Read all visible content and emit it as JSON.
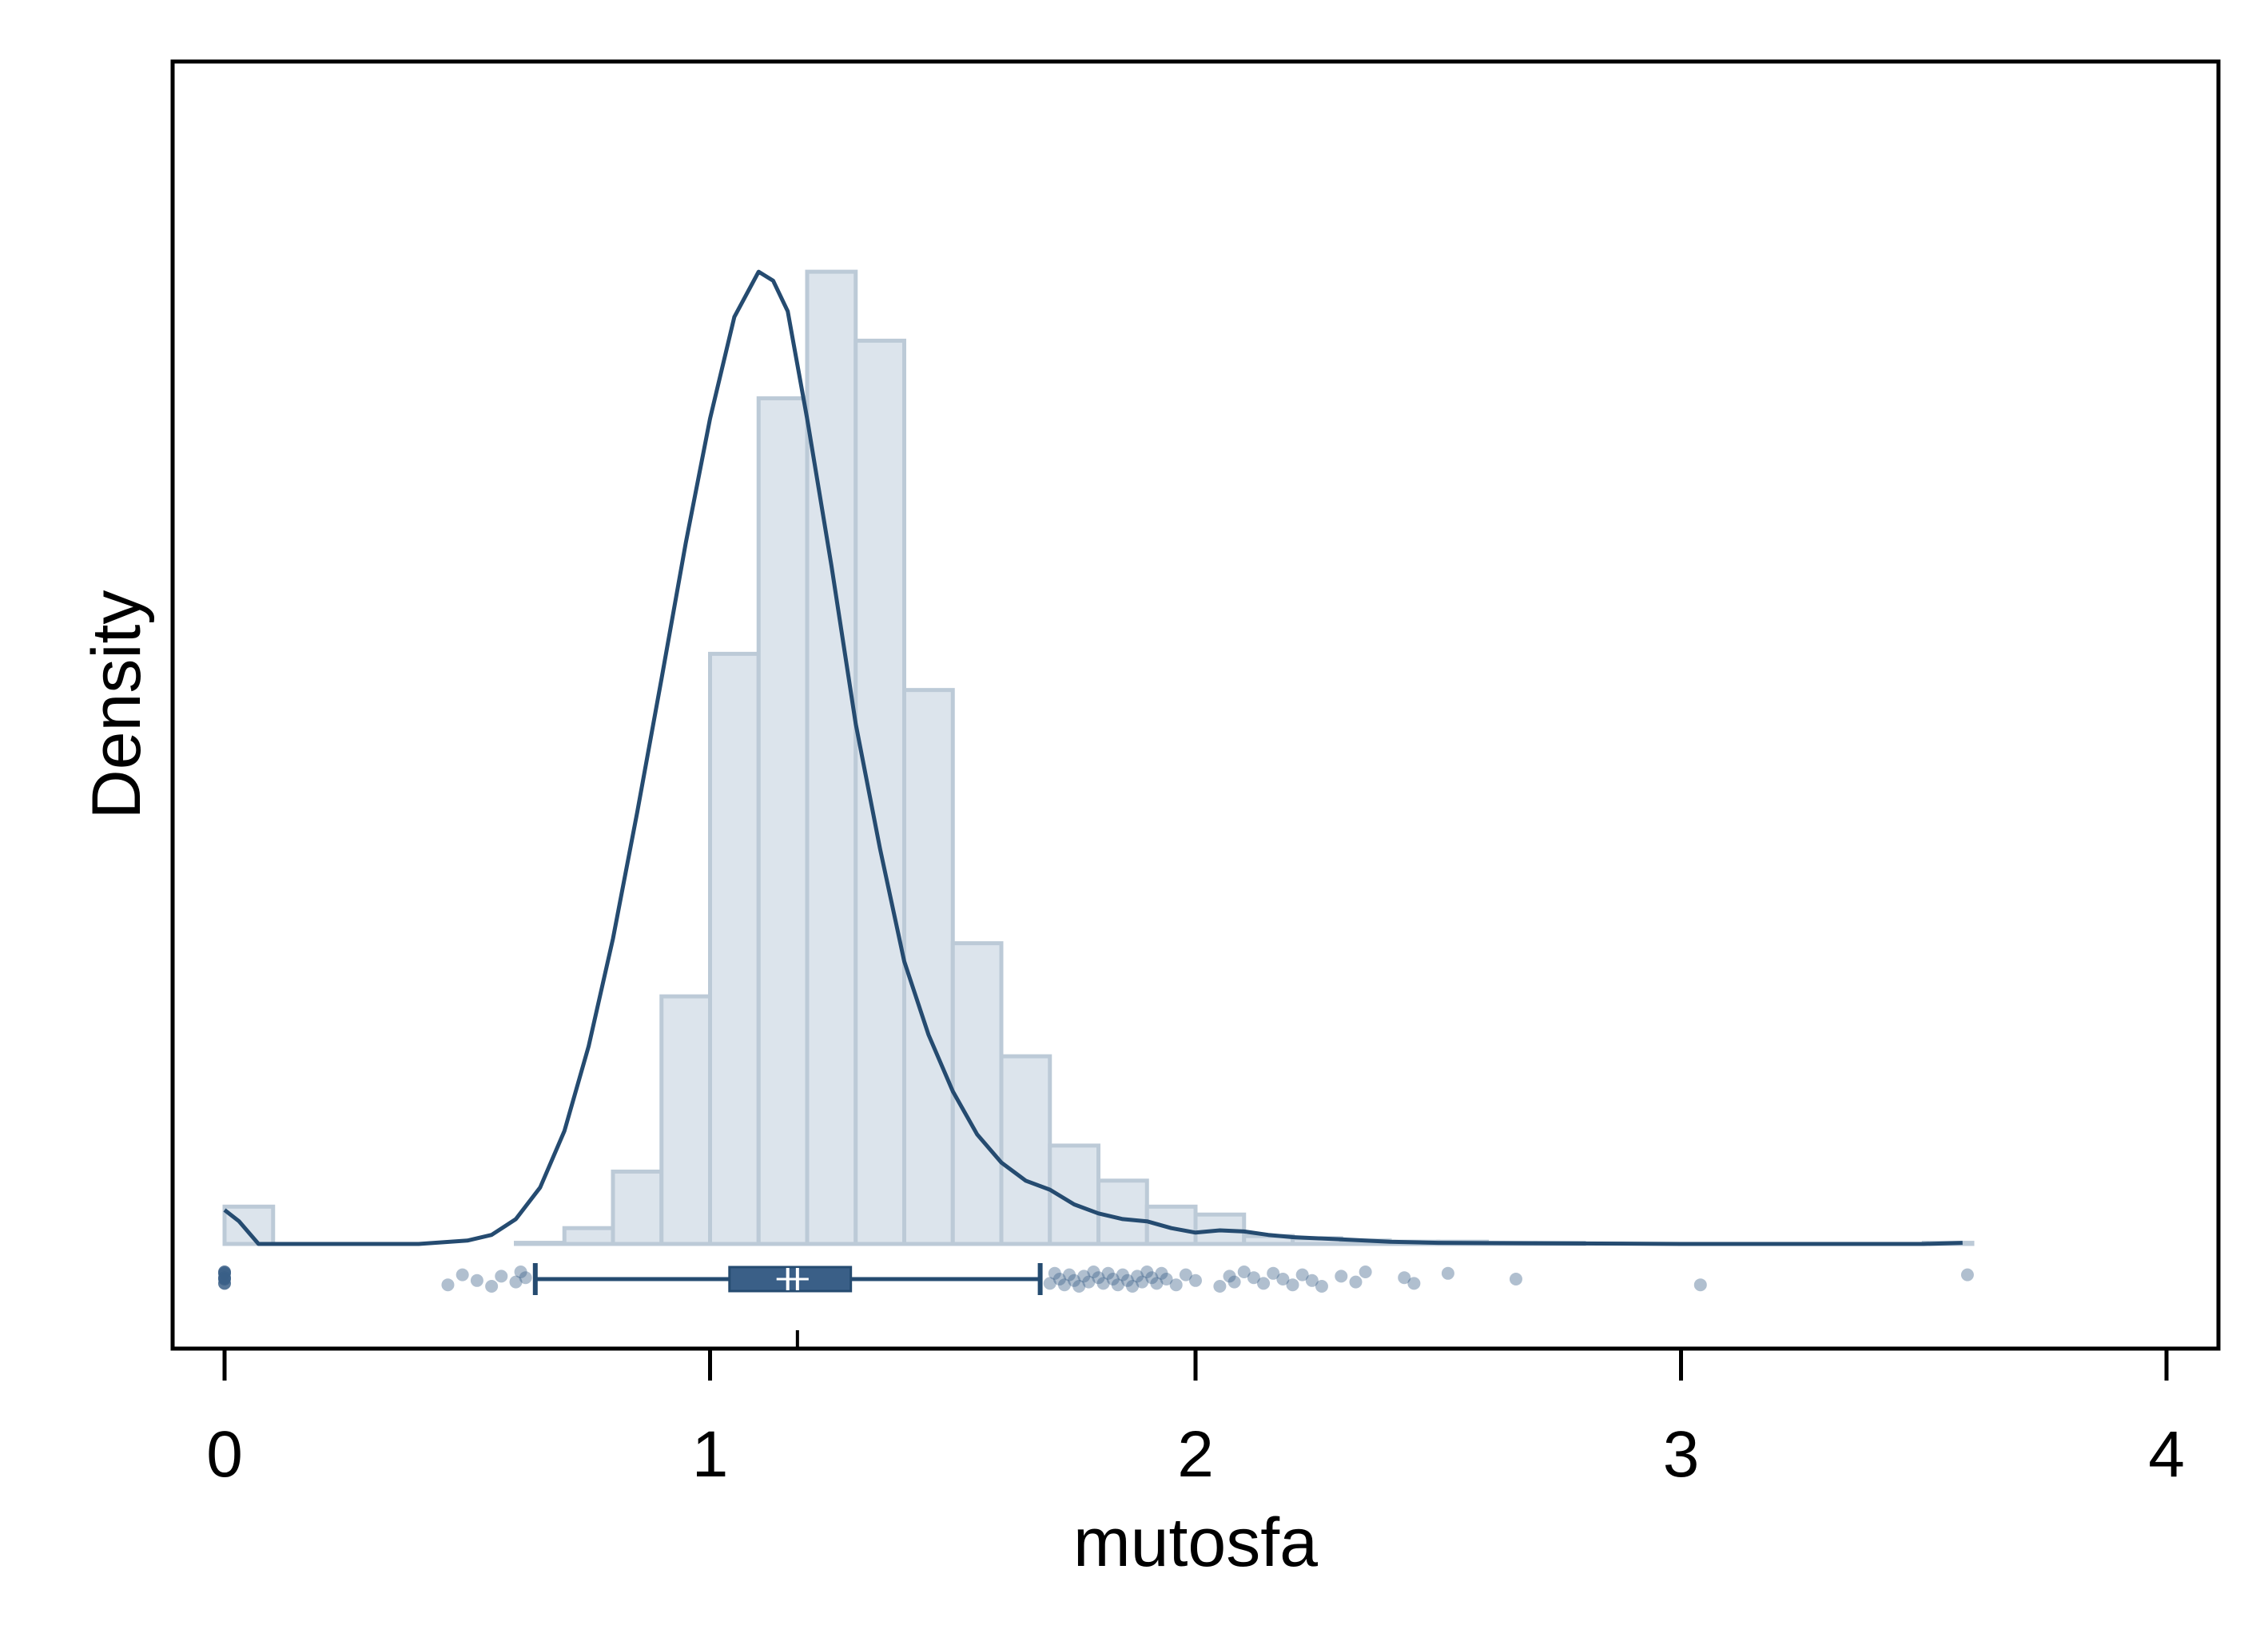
{
  "chart_data": {
    "type": "histogram",
    "title": "",
    "xlabel": "mutosfa",
    "ylabel": "Density",
    "xlim": [
      -0.11,
      4.11
    ],
    "xticks": [
      "0",
      "1",
      "2",
      "3",
      "4"
    ],
    "y_tick_labels_shown": false,
    "grid": false,
    "legend": "none",
    "colors": {
      "bar_fill": "#dce4ec",
      "bar_edge": "#bccad7",
      "line": "#254b70",
      "box": "#3a5f87",
      "points": "#3a5f87"
    },
    "histogram": {
      "bin_width": 0.1,
      "bin_starts": [
        0.0,
        0.1,
        0.2,
        0.3,
        0.4,
        0.5,
        0.6,
        0.7,
        0.8,
        0.9,
        1.0,
        1.1,
        1.2,
        1.3,
        1.4,
        1.5,
        1.6,
        1.7,
        1.8,
        1.9,
        2.0,
        2.1,
        2.2,
        2.3,
        2.4,
        2.5,
        2.6,
        2.7,
        2.8,
        2.9,
        3.0,
        3.1,
        3.2,
        3.3,
        3.4,
        3.5
      ],
      "relative_density": [
        0.033,
        0,
        0,
        0,
        0,
        0,
        0.001,
        0.014,
        0.064,
        0.219,
        0.522,
        0.748,
        0.86,
        0.799,
        0.49,
        0.266,
        0.166,
        0.087,
        0.056,
        0.033,
        0.026,
        0.007,
        0.005,
        0.003,
        0.002,
        0.002,
        0.001,
        0.001,
        0,
        0,
        0,
        0,
        0,
        0,
        0,
        0.001
      ]
    },
    "kde": {
      "x": [
        0.0,
        0.03,
        0.07,
        0.15,
        0.4,
        0.5,
        0.55,
        0.6,
        0.65,
        0.7,
        0.75,
        0.8,
        0.85,
        0.9,
        0.95,
        1.0,
        1.05,
        1.1,
        1.13,
        1.16,
        1.2,
        1.25,
        1.3,
        1.35,
        1.4,
        1.45,
        1.5,
        1.55,
        1.6,
        1.65,
        1.7,
        1.75,
        1.8,
        1.85,
        1.9,
        1.95,
        2.0,
        2.05,
        2.1,
        2.15,
        2.2,
        2.3,
        2.4,
        2.5,
        3.0,
        3.5,
        3.58
      ],
      "relative_density": [
        0.03,
        0.02,
        0.0,
        0.0,
        0.0,
        0.003,
        0.008,
        0.022,
        0.05,
        0.1,
        0.175,
        0.27,
        0.382,
        0.5,
        0.62,
        0.73,
        0.82,
        0.86,
        0.852,
        0.825,
        0.73,
        0.6,
        0.46,
        0.35,
        0.25,
        0.185,
        0.135,
        0.097,
        0.072,
        0.056,
        0.048,
        0.035,
        0.027,
        0.022,
        0.02,
        0.014,
        0.01,
        0.012,
        0.011,
        0.008,
        0.006,
        0.004,
        0.002,
        0.001,
        0.0,
        0.0,
        0.001
      ]
    },
    "boxplot": {
      "whisker_low": 0.64,
      "q1": 1.04,
      "median": 1.16,
      "q3": 1.29,
      "whisker_high": 1.68,
      "mean": 1.18
    },
    "outliers": [
      0.0,
      0.0,
      0.0,
      0.0,
      0.0,
      0.46,
      0.49,
      0.52,
      0.55,
      0.57,
      0.6,
      0.61,
      0.62,
      1.7,
      1.71,
      1.72,
      1.73,
      1.74,
      1.75,
      1.76,
      1.77,
      1.78,
      1.79,
      1.8,
      1.81,
      1.82,
      1.83,
      1.84,
      1.85,
      1.86,
      1.87,
      1.88,
      1.89,
      1.9,
      1.91,
      1.92,
      1.93,
      1.94,
      1.96,
      1.98,
      2.0,
      2.05,
      2.07,
      2.08,
      2.1,
      2.12,
      2.14,
      2.16,
      2.18,
      2.2,
      2.22,
      2.24,
      2.26,
      2.3,
      2.33,
      2.35,
      2.43,
      2.45,
      2.52,
      2.66,
      3.04,
      3.59
    ]
  }
}
